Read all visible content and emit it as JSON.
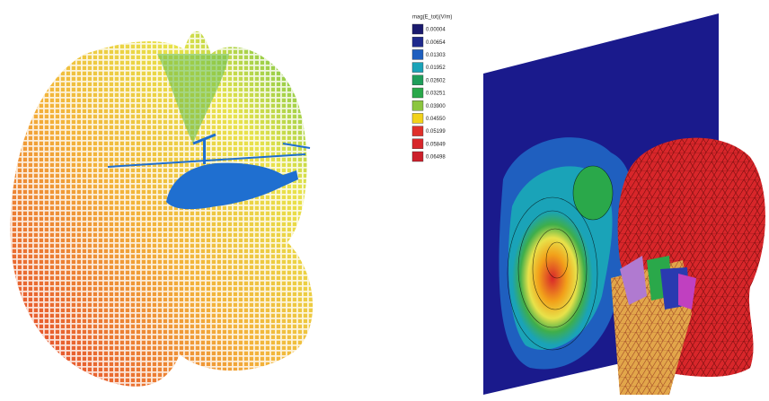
{
  "legend": {
    "title": "mag(E_tot)(V/m)",
    "entries": [
      {
        "label": "0.00004",
        "color": "#1a1a6e"
      },
      {
        "label": "0.00654",
        "color": "#1f2a8c"
      },
      {
        "label": "0.01303",
        "color": "#1f5fbf"
      },
      {
        "label": "0.01952",
        "color": "#1aa3b8"
      },
      {
        "label": "0.02602",
        "color": "#1f9e5a"
      },
      {
        "label": "0.03251",
        "color": "#2aa84a"
      },
      {
        "label": "0.03900",
        "color": "#8cc63f"
      },
      {
        "label": "0.04550",
        "color": "#f2d21a"
      },
      {
        "label": "0.05199",
        "color": "#e0302a"
      },
      {
        "label": "0.05849",
        "color": "#d8262a"
      },
      {
        "label": "0.06498",
        "color": "#cc1f2a"
      }
    ]
  }
}
